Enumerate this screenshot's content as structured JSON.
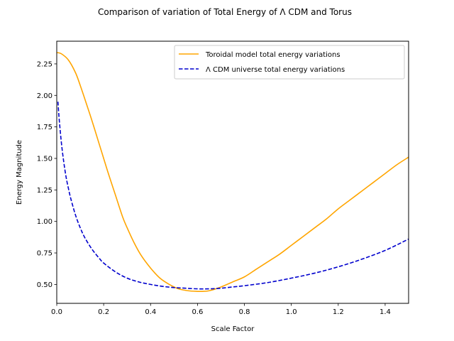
{
  "chart_data": {
    "type": "line",
    "title": "Comparison of variation of Total Energy of Λ CDM and Torus",
    "xlabel": "Scale Factor",
    "ylabel": "Energy Magnitude",
    "xlim": [
      0.0,
      1.5
    ],
    "ylim": [
      0.35,
      2.43
    ],
    "xticks": [
      0.0,
      0.2,
      0.4,
      0.6,
      0.8,
      1.0,
      1.2,
      1.4
    ],
    "xtick_labels": [
      "0.0",
      "0.2",
      "0.4",
      "0.6",
      "0.8",
      "1.0",
      "1.2",
      "1.4"
    ],
    "yticks": [
      0.5,
      0.75,
      1.0,
      1.25,
      1.5,
      1.75,
      2.0,
      2.25
    ],
    "ytick_labels": [
      "0.50",
      "0.75",
      "1.00",
      "1.25",
      "1.50",
      "1.75",
      "2.00",
      "2.25"
    ],
    "grid": false,
    "legend_position": "top-right",
    "series": [
      {
        "name": "Toroidal model total energy variations",
        "color": "#ffa500",
        "style": "solid",
        "x": [
          0.0,
          0.02,
          0.05,
          0.08,
          0.1,
          0.12,
          0.15,
          0.18,
          0.2,
          0.22,
          0.25,
          0.28,
          0.3,
          0.33,
          0.36,
          0.4,
          0.44,
          0.48,
          0.52,
          0.56,
          0.6,
          0.62,
          0.65,
          0.7,
          0.75,
          0.8,
          0.85,
          0.9,
          0.95,
          1.0,
          1.05,
          1.1,
          1.15,
          1.2,
          1.25,
          1.3,
          1.35,
          1.4,
          1.45,
          1.5
        ],
        "y": [
          2.34,
          2.33,
          2.28,
          2.18,
          2.08,
          1.97,
          1.8,
          1.62,
          1.5,
          1.38,
          1.21,
          1.04,
          0.95,
          0.83,
          0.73,
          0.63,
          0.55,
          0.5,
          0.465,
          0.45,
          0.445,
          0.445,
          0.45,
          0.48,
          0.52,
          0.56,
          0.62,
          0.68,
          0.74,
          0.81,
          0.88,
          0.95,
          1.02,
          1.1,
          1.17,
          1.24,
          1.31,
          1.38,
          1.45,
          1.51
        ]
      },
      {
        "name": "Λ CDM universe total energy variations",
        "color": "#0000cd",
        "style": "dashed",
        "x": [
          0.005,
          0.01,
          0.02,
          0.03,
          0.04,
          0.05,
          0.06,
          0.08,
          0.1,
          0.12,
          0.15,
          0.18,
          0.2,
          0.25,
          0.3,
          0.35,
          0.4,
          0.45,
          0.5,
          0.55,
          0.6,
          0.65,
          0.7,
          0.75,
          0.8,
          0.9,
          1.0,
          1.1,
          1.2,
          1.3,
          1.4,
          1.5
        ],
        "y": [
          1.95,
          1.82,
          1.62,
          1.47,
          1.35,
          1.26,
          1.18,
          1.05,
          0.95,
          0.87,
          0.78,
          0.71,
          0.67,
          0.6,
          0.55,
          0.52,
          0.5,
          0.485,
          0.475,
          0.47,
          0.465,
          0.465,
          0.47,
          0.48,
          0.49,
          0.515,
          0.55,
          0.59,
          0.64,
          0.7,
          0.77,
          0.86
        ]
      }
    ]
  }
}
